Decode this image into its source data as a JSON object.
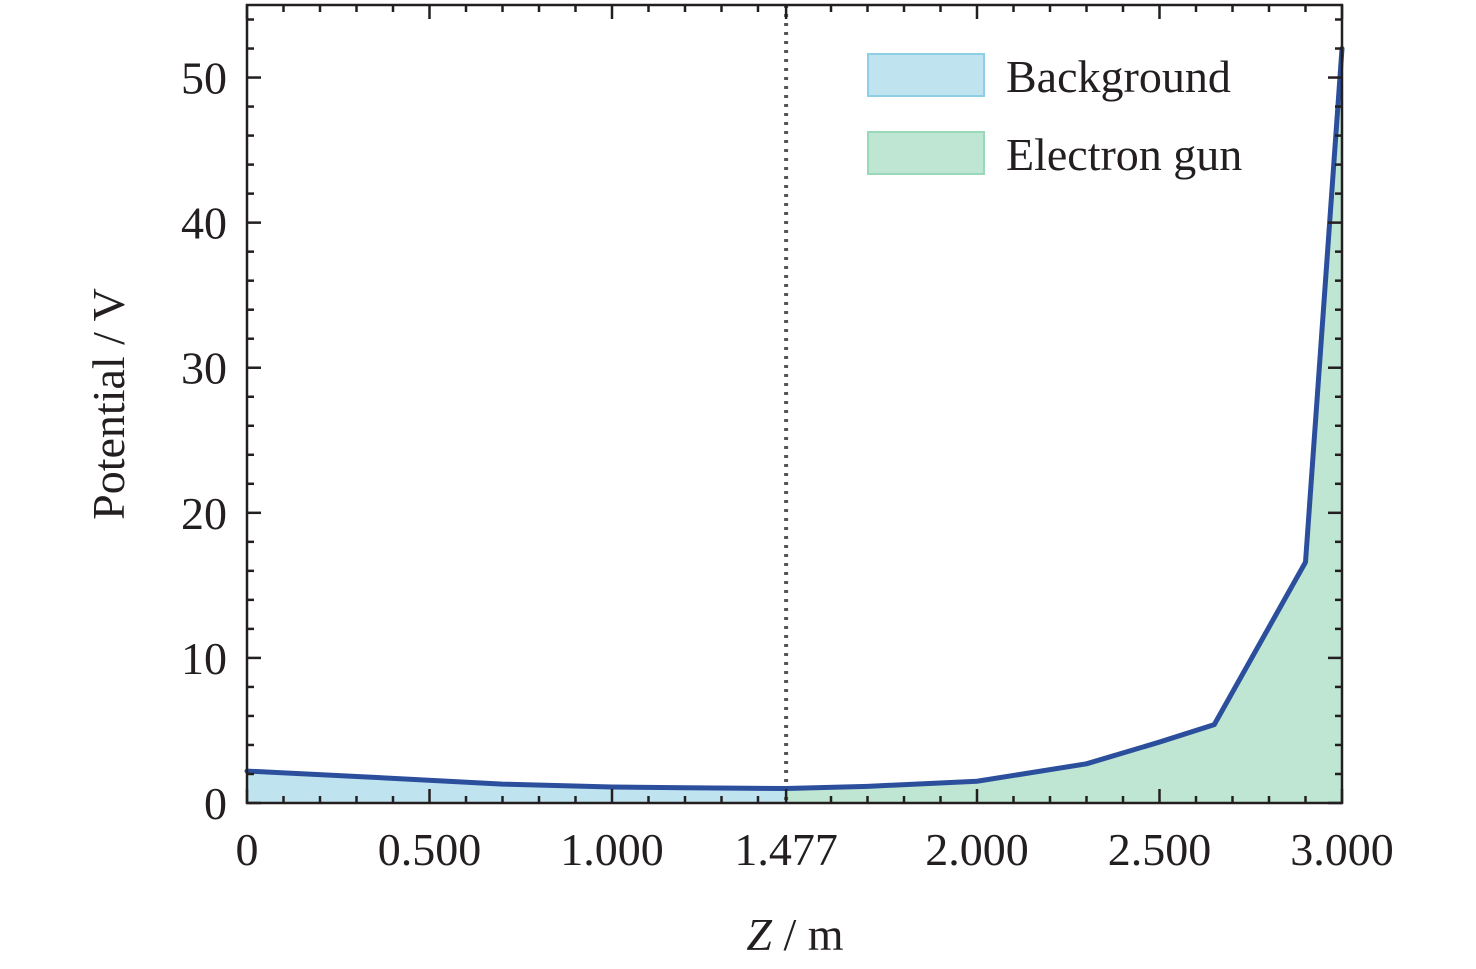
{
  "chart_data": {
    "type": "area",
    "x_tick_labels": [
      "0",
      "0.500",
      "1.000",
      "1.477",
      "2.000",
      "2.500",
      "3.000"
    ],
    "x_ticks": [
      0,
      0.5,
      1.0,
      1.477,
      2.0,
      2.5,
      3.0
    ],
    "y_tick_labels": [
      "0",
      "10",
      "20",
      "30",
      "40",
      "50"
    ],
    "y_ticks": [
      0,
      10,
      20,
      30,
      40,
      50
    ],
    "xlim": [
      0,
      3.0
    ],
    "ylim": [
      0,
      55
    ],
    "xlabel_italic": "Z",
    "xlabel_rest": " / m",
    "ylabel": "Potential / V",
    "boundary_x": 1.477,
    "x": [
      0,
      0.4,
      0.7,
      1.0,
      1.2,
      1.477,
      1.7,
      2.0,
      2.3,
      2.5,
      2.65,
      2.9,
      3.0
    ],
    "y": [
      2.2,
      1.7,
      1.3,
      1.1,
      1.05,
      1.0,
      1.15,
      1.5,
      2.7,
      4.2,
      5.4,
      16.6,
      52.0
    ],
    "regions": [
      {
        "name": "Background",
        "x_range": [
          0,
          1.477
        ],
        "color": "#bfe3ef",
        "edge": "#8fcfe6"
      },
      {
        "name": "Electron gun",
        "x_range": [
          1.477,
          3.0
        ],
        "color": "#bfe6d2",
        "edge": "#97d9b9"
      }
    ],
    "line_color": "#2b4f9c",
    "grid": false,
    "legend_position": "top-right"
  }
}
